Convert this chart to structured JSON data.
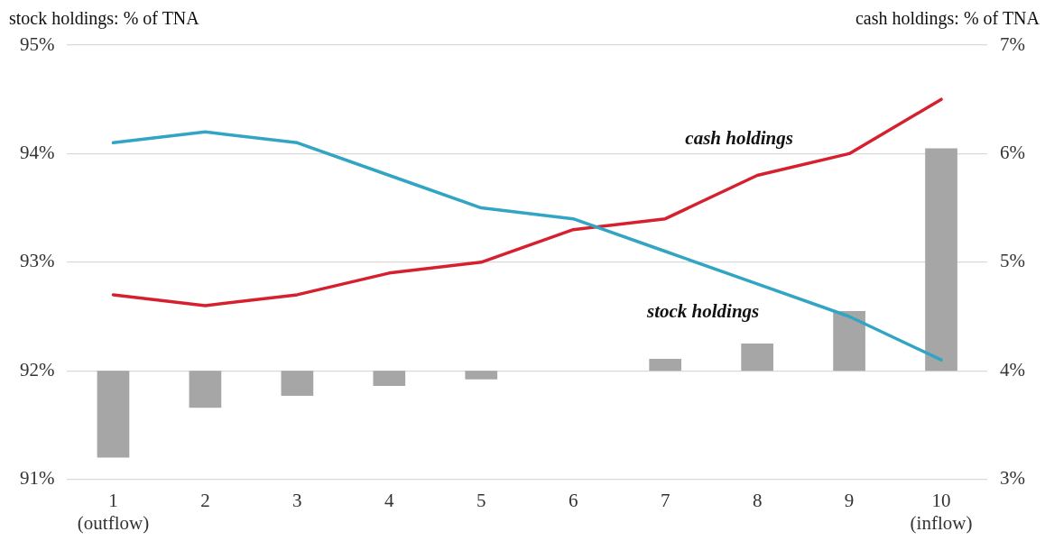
{
  "chart_data": {
    "type": "line",
    "ylabel": "stock holdings: % of TNA",
    "y2label": "cash holdings: % of TNA",
    "categories": [
      "1\n(outflow)",
      "2",
      "3",
      "4",
      "5",
      "6",
      "7",
      "8",
      "9",
      "10\n(inflow)"
    ],
    "series": [
      {
        "type": "bar",
        "color": "#a6a6a6",
        "base": [
          92,
          92,
          92,
          92,
          92,
          null,
          92,
          92,
          92,
          92
        ],
        "values": [
          -0.8,
          -0.34,
          -0.23,
          -0.14,
          -0.08,
          null,
          0.11,
          0.25,
          0.55,
          2.05
        ]
      },
      {
        "name": "stock holdings",
        "color": "#31a5c3",
        "values": [
          94.1,
          94.2,
          94.1,
          93.8,
          93.5,
          93.4,
          93.1,
          92.8,
          92.5,
          92.1
        ]
      },
      {
        "name": "cash holdings",
        "color": "#d6202e",
        "axis": "y2",
        "values": [
          4.7,
          4.6,
          4.7,
          4.9,
          5.0,
          5.3,
          5.4,
          5.8,
          6.0,
          6.5
        ]
      }
    ],
    "ylim": [
      91,
      95
    ],
    "yticks": [
      {
        "value": 91,
        "label": "91%"
      },
      {
        "value": 92,
        "label": "92%"
      },
      {
        "value": 93,
        "label": "93%"
      },
      {
        "value": 94,
        "label": "94%"
      },
      {
        "value": 95,
        "label": "95%"
      }
    ],
    "y2lim": [
      3,
      7
    ],
    "y2ticks": [
      {
        "value": 3,
        "label": "3%"
      },
      {
        "value": 4,
        "label": "4%"
      },
      {
        "value": 5,
        "label": "5%"
      },
      {
        "value": 6,
        "label": "6%"
      },
      {
        "value": 7,
        "label": "7%"
      }
    ],
    "grid": "y",
    "legend": false,
    "marker": "none",
    "line_style": "solid"
  }
}
